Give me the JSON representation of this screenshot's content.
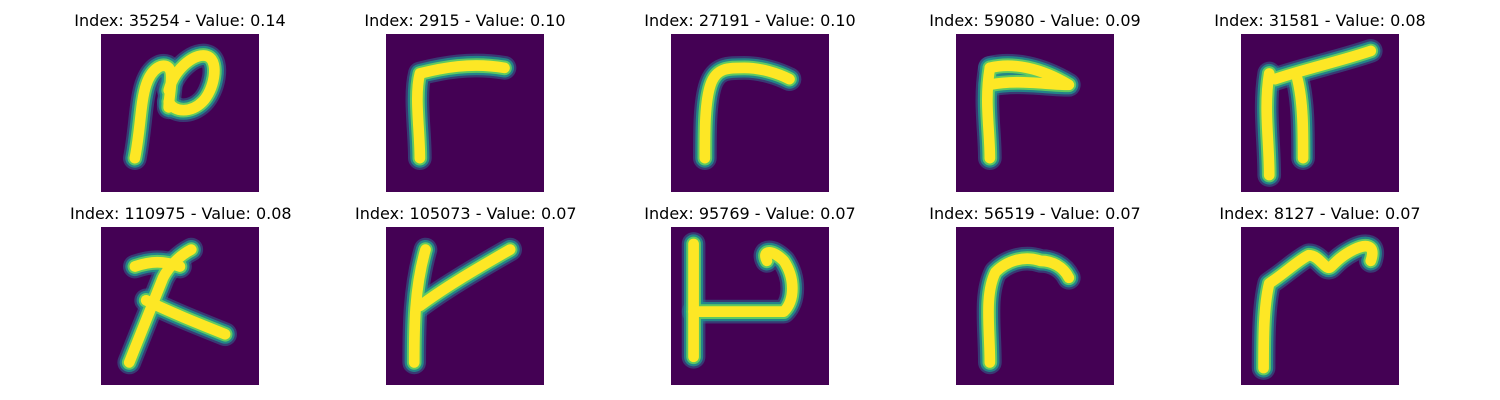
{
  "figure": {
    "background": "#ffffff",
    "image_background": "#440154",
    "colormap": "viridis",
    "rows": 2,
    "cols": 5
  },
  "panels": [
    {
      "index": 35254,
      "value": "0.14",
      "title": "Index: 35254 - Value: 0.14",
      "glyph": "hook-loop"
    },
    {
      "index": 2915,
      "value": "0.10",
      "title": "Index: 2915 - Value: 0.10",
      "glyph": "corner"
    },
    {
      "index": 27191,
      "value": "0.10",
      "title": "Index: 27191 - Value: 0.10",
      "glyph": "corner-thick"
    },
    {
      "index": 59080,
      "value": "0.09",
      "title": "Index: 59080 - Value: 0.09",
      "glyph": "corner-flag"
    },
    {
      "index": 31581,
      "value": "0.08",
      "title": "Index: 31581 - Value: 0.08",
      "glyph": "double-corner"
    },
    {
      "index": 110975,
      "value": "0.08",
      "title": "Index: 110975 - Value: 0.08",
      "glyph": "k-stroke"
    },
    {
      "index": 105073,
      "value": "0.07",
      "title": "Index: 105073 - Value: 0.07",
      "glyph": "y-stroke"
    },
    {
      "index": 95769,
      "value": "0.07",
      "title": "Index: 95769 - Value: 0.07",
      "glyph": "p-loop"
    },
    {
      "index": 56519,
      "value": "0.07",
      "title": "Index: 56519 - Value: 0.07",
      "glyph": "arch"
    },
    {
      "index": 8127,
      "value": "0.07",
      "title": "Index: 8127 - Value: 0.07",
      "glyph": "wave"
    }
  ]
}
